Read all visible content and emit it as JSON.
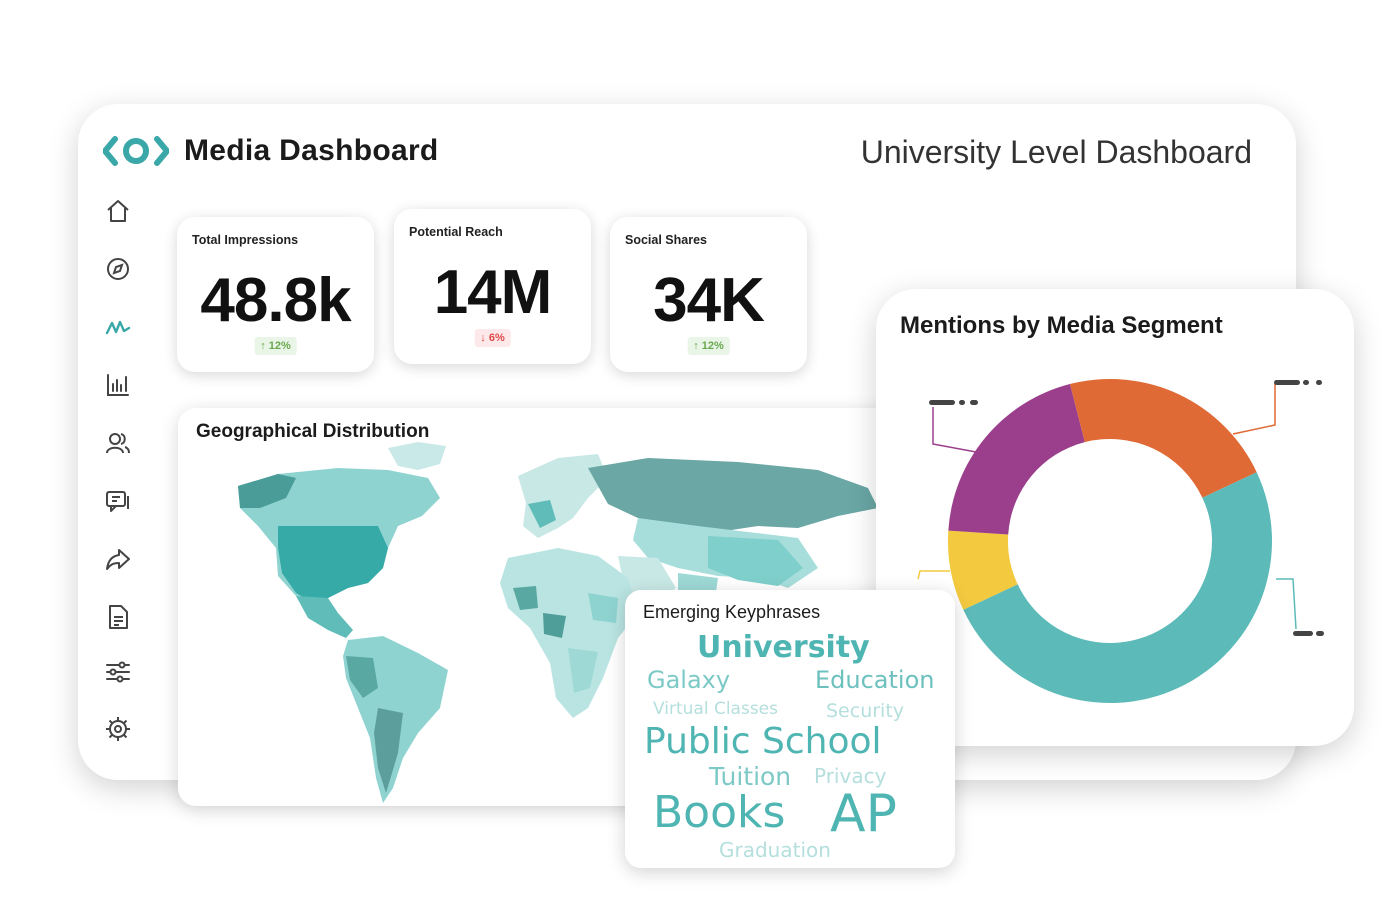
{
  "header": {
    "app_title": "Media Dashboard",
    "level_title": "University Level Dashboard",
    "logo_icon": "eye-logo-icon",
    "accent_color": "#3aa7a8"
  },
  "sidebar": {
    "items": [
      {
        "icon": "home-icon"
      },
      {
        "icon": "compass-icon"
      },
      {
        "icon": "activity-icon",
        "active": true
      },
      {
        "icon": "bar-chart-icon"
      },
      {
        "icon": "users-icon"
      },
      {
        "icon": "messages-icon"
      },
      {
        "icon": "share-icon"
      },
      {
        "icon": "document-icon"
      },
      {
        "icon": "sliders-icon"
      },
      {
        "icon": "settings-icon"
      }
    ]
  },
  "kpis": [
    {
      "label": "Total Impressions",
      "value": "48.8k",
      "change": "12%",
      "direction": "up"
    },
    {
      "label": "Potential Reach",
      "value": "14M",
      "change": "6%",
      "direction": "down"
    },
    {
      "label": "Social Shares",
      "value": "34K",
      "change": "12%",
      "direction": "up"
    }
  ],
  "geo": {
    "title": "Geographical Distribution"
  },
  "keyphrases": {
    "title": "Emerging Keyphrases",
    "words": [
      {
        "text": "University",
        "weight": 0.8
      },
      {
        "text": "Galaxy",
        "weight": 0.55
      },
      {
        "text": "Education",
        "weight": 0.6
      },
      {
        "text": "Virtual Classes",
        "weight": 0.3
      },
      {
        "text": "Security",
        "weight": 0.35
      },
      {
        "text": "Public School",
        "weight": 0.95
      },
      {
        "text": "Tuition",
        "weight": 0.55
      },
      {
        "text": "Privacy",
        "weight": 0.35
      },
      {
        "text": "Books",
        "weight": 1.0
      },
      {
        "text": "AP",
        "weight": 1.0
      },
      {
        "text": "Graduation",
        "weight": 0.35
      }
    ]
  },
  "chart_data": {
    "type": "pie",
    "title": "Mentions by Media Segment",
    "donut": true,
    "categories": [
      "",
      "",
      "",
      ""
    ],
    "values": [
      22,
      50,
      8,
      20
    ],
    "colors": [
      "#e06a35",
      "#5cbab8",
      "#f3c93f",
      "#9b3f8c"
    ],
    "legend": "none"
  }
}
